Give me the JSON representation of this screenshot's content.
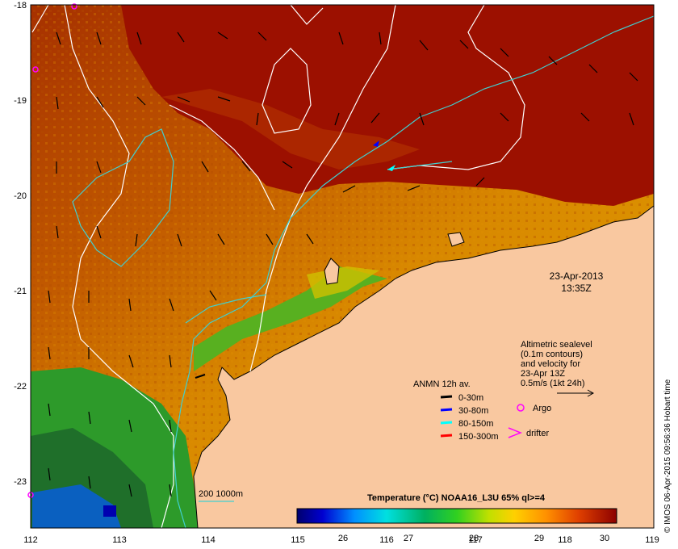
{
  "map": {
    "date": "23-Apr-2013",
    "time": "13:35Z",
    "longitude_ticks": [
      "112",
      "113",
      "114",
      "115",
      "116",
      "117",
      "118",
      "119"
    ],
    "latitude_ticks": [
      "-18",
      "-19",
      "-20",
      "-21",
      "-22",
      "-23"
    ],
    "altimetry_note": [
      "Altimetric sealevel",
      "(0.1m contours)",
      "and velocity for",
      "23-Apr 13Z",
      "0.5m/s (1kt 24h)"
    ],
    "anmn_title": "ANMN 12h av.",
    "anmn_legend": [
      {
        "label": "0-30m",
        "color": "#000000"
      },
      {
        "label": "30-80m",
        "color": "#0000ff"
      },
      {
        "label": "80-150m",
        "color": "#00ffff"
      },
      {
        "label": "150-300m",
        "color": "#ff0000"
      }
    ],
    "argo_label": "Argo",
    "drifter_label": "drifter",
    "bathymetry_label": "200  1000m",
    "colorbar_title": "Temperature (°C) NOAA16_L3U 65% ql>=4",
    "colorbar_ticks": [
      "26",
      "27",
      "28",
      "29",
      "30"
    ],
    "credit": "© IMOS 06-Apr-2015 09:56:36 Hobart time",
    "colors": {
      "land": "#f9c8a0",
      "warm": "#9c1000",
      "cool": "#1f6f2a",
      "argo": "#ff00ff",
      "contour_cyan": "#40d0d0"
    }
  }
}
